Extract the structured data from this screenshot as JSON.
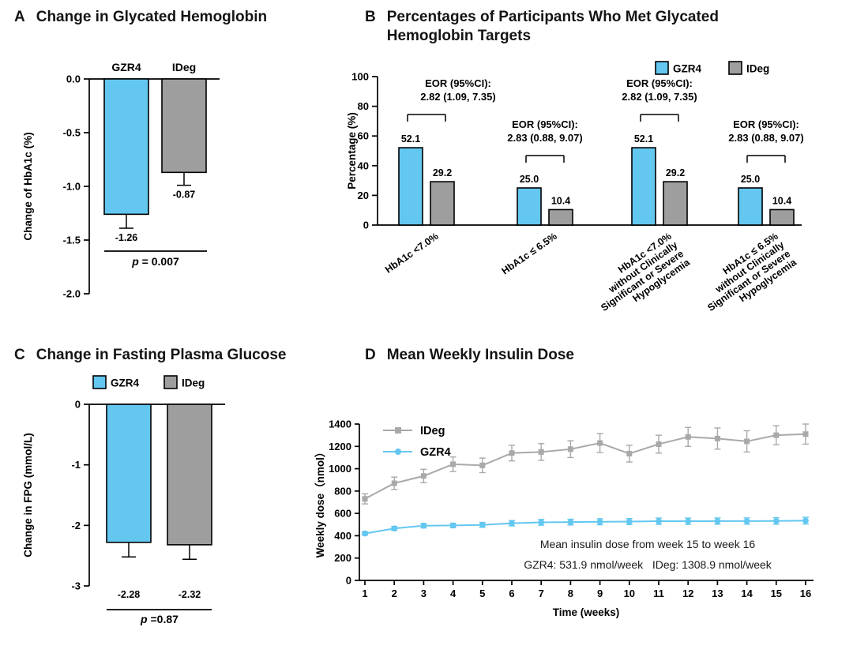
{
  "colors": {
    "gzr4": "#63C7F0",
    "ideg": "#9E9E9E",
    "ideg_line": "#A9A9A9",
    "axis": "#000000"
  },
  "chart_data": [
    {
      "id": "A",
      "panel_label": "A",
      "title": "Change in Glycated Hemoglobin",
      "type": "bar",
      "ylabel": "Change of HbA1c (%)",
      "ylim": [
        -2.0,
        0.0
      ],
      "ytick_values": [
        0,
        -0.5,
        -1,
        -1.5,
        -2
      ],
      "ytick_labels": [
        "0.0",
        "-0.5",
        "-1.0",
        "-1.5",
        "-2.0"
      ],
      "categories": [
        "GZR4",
        "IDeg"
      ],
      "values": [
        -1.26,
        -0.87
      ],
      "value_labels": [
        "-1.26",
        "-0.87"
      ],
      "errors": [
        0.13,
        0.12
      ],
      "p_italic": "p",
      "p_rest": " = 0.007"
    },
    {
      "id": "B",
      "panel_label": "B",
      "title": "Percentages of Participants Who Met Glycated Hemoglobin Targets",
      "type": "bar",
      "ylabel": "Percentage (%)",
      "ylim": [
        0,
        100
      ],
      "ytick_values": [
        0,
        20,
        40,
        60,
        80,
        100
      ],
      "legend": [
        "GZR4",
        "IDeg"
      ],
      "categories": [
        [
          "HbA1c <7.0%"
        ],
        [
          "HbA1c ≤ 6.5%"
        ],
        [
          "HbA1c <7.0%",
          "without Clinically",
          "Significant or Severe",
          "Hypoglycemia"
        ],
        [
          "HbA1c ≤ 6.5%",
          "without Clinically",
          "Significant or Severe",
          "Hypoglycemia"
        ]
      ],
      "series": [
        {
          "name": "GZR4",
          "values": [
            52.1,
            25.0,
            52.1,
            25.0
          ],
          "value_labels": [
            "52.1",
            "25.0",
            "52.1",
            "25.0"
          ]
        },
        {
          "name": "IDeg",
          "values": [
            29.2,
            10.4,
            29.2,
            10.4
          ],
          "value_labels": [
            "29.2",
            "10.4",
            "29.2",
            "10.4"
          ]
        }
      ],
      "annotations": [
        {
          "line1": "EOR (95%CI):",
          "line2": "2.82 (1.09, 7.35)"
        },
        {
          "line1": "EOR (95%CI):",
          "line2": "2.83 (0.88, 9.07)"
        },
        {
          "line1": "EOR (95%CI):",
          "line2": "2.82 (1.09, 7.35)"
        },
        {
          "line1": "EOR (95%CI):",
          "line2": "2.83 (0.88, 9.07)"
        }
      ]
    },
    {
      "id": "C",
      "panel_label": "C",
      "title": "Change in Fasting Plasma Glucose",
      "type": "bar",
      "ylabel": "Change in FPG (mmol/L)",
      "ylim": [
        -3,
        0
      ],
      "ytick_values": [
        0,
        -1,
        -2,
        -3
      ],
      "ytick_labels": [
        "0",
        "-1",
        "-2",
        "-3"
      ],
      "legend": [
        "GZR4",
        "IDeg"
      ],
      "categories": [
        "GZR4",
        "IDeg"
      ],
      "values": [
        -2.28,
        -2.32
      ],
      "value_labels": [
        "-2.28",
        "-2.32"
      ],
      "errors": [
        0.24,
        0.24
      ],
      "p_italic": "p",
      "p_rest": " =0.87"
    },
    {
      "id": "D",
      "panel_label": "D",
      "title": "Mean Weekly Insulin Dose",
      "type": "line",
      "xlabel": "Time (weeks)",
      "ylabel": "Weekly dose（nmol）",
      "ylim": [
        0,
        1400
      ],
      "ytick_values": [
        0,
        200,
        400,
        600,
        800,
        1000,
        1200,
        1400
      ],
      "x": [
        1,
        2,
        3,
        4,
        5,
        6,
        7,
        8,
        9,
        10,
        11,
        12,
        13,
        14,
        15,
        16
      ],
      "series": [
        {
          "name": "IDeg",
          "marker": "square",
          "values": [
            730,
            870,
            935,
            1040,
            1030,
            1140,
            1150,
            1175,
            1230,
            1135,
            1220,
            1285,
            1270,
            1245,
            1300,
            1310
          ],
          "errors": [
            45,
            55,
            60,
            65,
            65,
            70,
            75,
            75,
            85,
            75,
            80,
            85,
            95,
            95,
            85,
            90
          ]
        },
        {
          "name": "GZR4",
          "marker": "circle",
          "values": [
            420,
            465,
            490,
            492,
            497,
            512,
            520,
            522,
            525,
            527,
            530,
            530,
            531,
            531,
            532,
            535
          ],
          "errors": [
            15,
            18,
            20,
            20,
            22,
            24,
            26,
            26,
            27,
            27,
            28,
            28,
            28,
            28,
            29,
            30
          ]
        }
      ],
      "annotation_line1": "Mean insulin dose from week 15 to week 16",
      "annotation_line2": "GZR4: 531.9 nmol/week   IDeg: 1308.9 nmol/week"
    }
  ]
}
